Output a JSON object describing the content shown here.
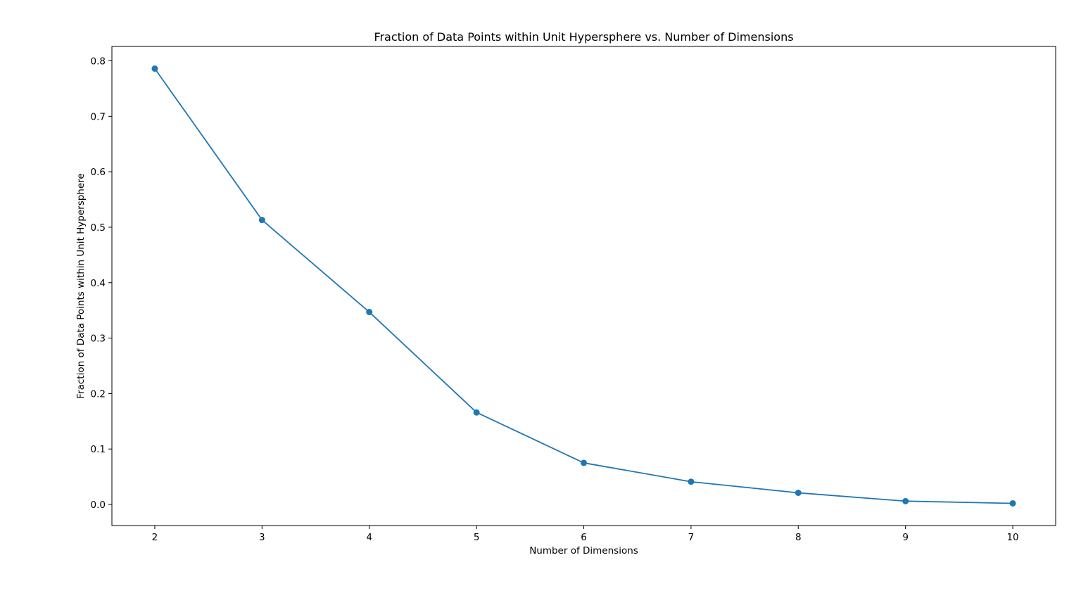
{
  "chart_data": {
    "type": "line",
    "title": "Fraction of Data Points within Unit Hypersphere vs. Number of Dimensions",
    "xlabel": "Number of Dimensions",
    "ylabel": "Fraction of Data Points within Unit Hypersphere",
    "x": [
      2,
      3,
      4,
      5,
      6,
      7,
      8,
      9,
      10
    ],
    "series": [
      {
        "values": [
          0.786,
          0.513,
          0.347,
          0.166,
          0.075,
          0.041,
          0.021,
          0.006,
          0.002
        ],
        "color": "#1f77b4",
        "marker": "circle"
      }
    ],
    "xlim": [
      1.6,
      10.4
    ],
    "ylim": [
      -0.038,
      0.826
    ],
    "xticks": [
      2,
      3,
      4,
      5,
      6,
      7,
      8,
      9,
      10
    ],
    "yticks": [
      0.0,
      0.1,
      0.2,
      0.3,
      0.4,
      0.5,
      0.6,
      0.7,
      0.8
    ],
    "xtick_labels": [
      "2",
      "3",
      "4",
      "5",
      "6",
      "7",
      "8",
      "9",
      "10"
    ],
    "ytick_labels": [
      "0.0",
      "0.1",
      "0.2",
      "0.3",
      "0.4",
      "0.5",
      "0.6",
      "0.7",
      "0.8"
    ],
    "grid": false,
    "legend": "none"
  }
}
